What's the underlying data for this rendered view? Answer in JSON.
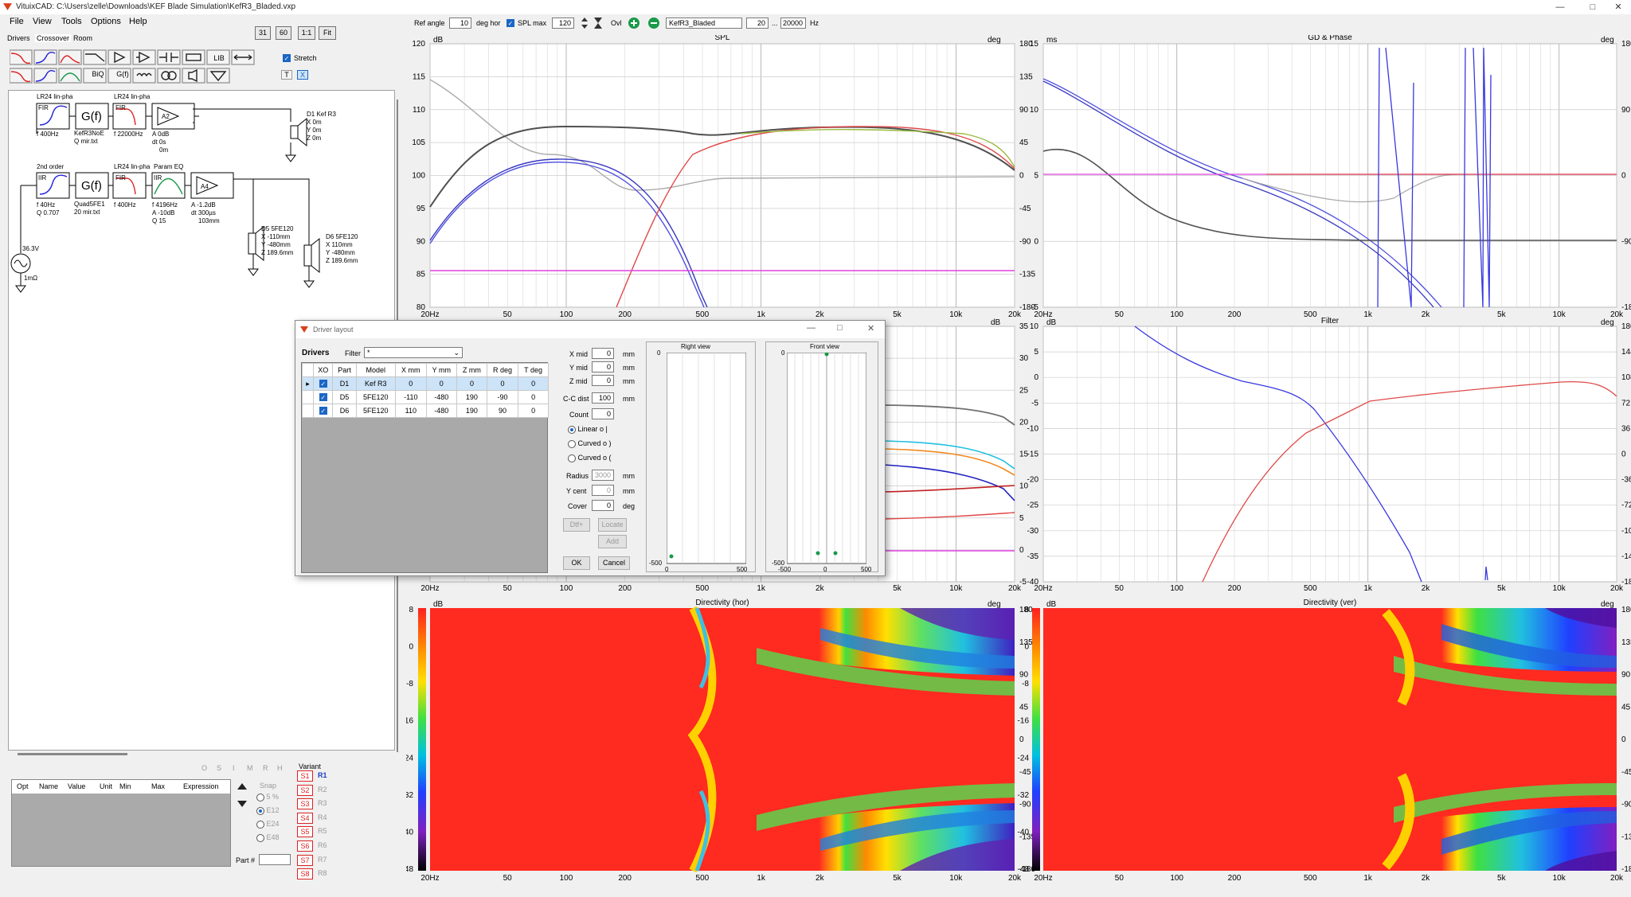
{
  "window": {
    "title": "VituixCAD: C:\\Users\\zelle\\Downloads\\KEF Blade Simulation\\KefR3_Bladed.vxp"
  },
  "menu": [
    "File",
    "View",
    "Tools",
    "Options",
    "Help"
  ],
  "tabs": [
    "Drivers",
    "Crossover",
    "Room"
  ],
  "toolbar_top": {
    "btn31": "31",
    "btn60": "60",
    "btn11": "1:1",
    "btnfit": "Fit",
    "ref_angle_label": "Ref angle",
    "ref_angle_value": "10",
    "deg_hor": "deg hor",
    "spl_max_label": "SPL max",
    "spl_max_value": "120",
    "ovl_label": "Ovl",
    "project_name": "KefR3_Bladed",
    "freq_min": "20",
    "dots": "...",
    "freq_max": "20000",
    "hz": "Hz"
  },
  "crossover_toolbar": {
    "lib": "LIB",
    "stretch": "Stretch",
    "biq": "BiQ",
    "gf": "G(f)",
    "t": "T",
    "x": "X"
  },
  "schematic": {
    "block1_label": "LR24 lin-pha",
    "block1_sub": "FIR",
    "block1_f": "f   400Hz",
    "gf1_label": "G(f)",
    "gf1_file": "KefR3NoE",
    "gf1_file2": "Q mir.txt",
    "block2_label": "LR24 lin-pha",
    "block2_sub": "FIR",
    "block2_f": "f   22000Hz",
    "amp1_name": "A2",
    "amp1_a": "A  0dB",
    "amp1_dt": "dt 0s",
    "amp1_m": "0m",
    "d1": "D1 Kef R3",
    "d1_x": "X  0m",
    "d1_y": "Y  0m",
    "d1_z": "Z  0m",
    "block3_label": "2nd order",
    "block3_sub": "IIR",
    "block3_f": "f   40Hz",
    "block3_q": "Q  0.707",
    "gf2_label": "G(f)",
    "gf2_file": "Quad5FE1",
    "gf2_file2": "20 mir.txt",
    "block4_label": "LR24 lin-pha",
    "block4_sub": "FIR",
    "block4_f": "f   400Hz",
    "block5_label": "Param EQ",
    "block5_sub": "IIR",
    "block5_f": "f   4196Hz",
    "block5_a": "A  -10dB",
    "block5_q": "Q  15",
    "amp2_name": "A4",
    "amp2_a": "A  -1.2dB",
    "amp2_dt": "dt 300µs",
    "amp2_m": "103mm",
    "d5": "D5 5FE120",
    "d5_x": "X  -110mm",
    "d5_y": "Y  -480mm",
    "d5_z": "Z  189.6mm",
    "d6": "D6 5FE120",
    "d6_x": "X  110mm",
    "d6_y": "Y  -480mm",
    "d6_z": "Z  189.6mm",
    "src_v": "36.3V",
    "src_r": "1mΩ"
  },
  "opt_table": {
    "headers": [
      "Opt",
      "Name",
      "Value",
      "Unit",
      "Min",
      "Max",
      "Expression"
    ],
    "letters": [
      "O",
      "S",
      "I",
      "M",
      "R",
      "H"
    ],
    "snap_label": "Snap",
    "snap": [
      "5 %",
      "E12",
      "E24",
      "E48"
    ],
    "part_label": "Part #",
    "variant_label": "Variant",
    "variants_s": [
      "S1",
      "S2",
      "S3",
      "S4",
      "S5",
      "S6",
      "S7",
      "S8"
    ],
    "variants_r": [
      "R1",
      "R2",
      "R3",
      "R4",
      "R5",
      "R6",
      "R7",
      "R8"
    ]
  },
  "charts": {
    "spl": {
      "title": "SPL",
      "ylabel_l": "dB",
      "ylabel_r": "deg",
      "yticks": [
        "120",
        "115",
        "110",
        "105",
        "100",
        "95",
        "90",
        "85",
        "80"
      ],
      "yticks_r": [
        "180",
        "135",
        "90",
        "45",
        "0",
        "-45",
        "-90",
        "-135",
        "-180"
      ]
    },
    "gd": {
      "title": "GD & Phase",
      "ylabel_l": "ms",
      "ylabel_r": "deg",
      "yticks": [
        "15",
        "10",
        "5",
        "0",
        "-5"
      ],
      "yticks_r": [
        "180",
        "90",
        "0",
        "-90",
        "-180"
      ]
    },
    "pwr": {
      "ylabel_l": "dB",
      "yticks_r": [
        "35",
        "30",
        "25",
        "20",
        "15",
        "10",
        "5",
        "0",
        "-5"
      ]
    },
    "filter": {
      "title": "Filter",
      "ylabel_l": "dB",
      "ylabel_r": "deg",
      "yticks": [
        "10",
        "5",
        "0",
        "-5",
        "-10",
        "-15",
        "-20",
        "-25",
        "-30",
        "-35",
        "-40"
      ],
      "yticks_r": [
        "180",
        "144",
        "108",
        "72",
        "36",
        "0",
        "-36",
        "-72",
        "-108",
        "-144",
        "-180"
      ]
    },
    "dir_hor": {
      "title": "Directivity (hor)",
      "ylabel_l": "dB",
      "ylabel_r": "deg"
    },
    "dir_ver": {
      "title": "Directivity (ver)",
      "ylabel_l": "dB",
      "ylabel_r": "deg"
    },
    "dir_yticks": [
      "180",
      "135",
      "90",
      "45",
      "0",
      "-45",
      "-90",
      "-135",
      "-180"
    ],
    "dir_scale": [
      "8",
      "0",
      "-8",
      "-16",
      "-24",
      "-32",
      "-40",
      "-48"
    ],
    "xticks": [
      "20Hz",
      "50",
      "100",
      "200",
      "500",
      "1k",
      "2k",
      "5k",
      "10k",
      "20k"
    ]
  },
  "dialog": {
    "title": "Driver layout",
    "drivers_label": "Drivers",
    "filter_label": "Filter",
    "filter_value": "*",
    "headers": [
      "XO",
      "Part",
      "Model",
      "X mm",
      "Y mm",
      "Z mm",
      "R deg",
      "T deg"
    ],
    "rows": [
      [
        "D1",
        "Kef R3",
        "0",
        "0",
        "0",
        "0",
        "0"
      ],
      [
        "D5",
        "5FE120",
        "-110",
        "-480",
        "190",
        "-90",
        "0"
      ],
      [
        "D6",
        "5FE120",
        "110",
        "-480",
        "190",
        "90",
        "0"
      ]
    ],
    "x_mid_label": "X mid",
    "x_mid": "0",
    "y_mid_label": "Y mid",
    "y_mid": "0",
    "z_mid_label": "Z mid",
    "z_mid": "0",
    "cc_label": "C-C dist",
    "cc": "100",
    "count_label": "Count",
    "count": "0",
    "mm": "mm",
    "deg": "deg",
    "linear": "Linear  o |",
    "curved1": "Curved  o )",
    "curved2": "Curved  o (",
    "radius_label": "Radius",
    "radius": "3000",
    "ycent_label": "Y cent",
    "ycent": "0",
    "cover_label": "Cover",
    "cover": "0",
    "dtf_btn": "Dtf+",
    "locate_btn": "Locate",
    "add_btn": "Add",
    "ok": "OK",
    "cancel": "Cancel",
    "right_view": "Right view",
    "front_view": "Front view",
    "rv_top": "0",
    "rv_bottom": "-500",
    "rv_x0": "0",
    "rv_x1": "500",
    "fv_top": "0",
    "fv_bottom": "-500",
    "fv_x0": "-500",
    "fv_x1": "0",
    "fv_x2": "500"
  },
  "colors": {
    "accent": "#1a66c5",
    "woofer": "#3838e0",
    "tweeter": "#e04848",
    "sum": "#505050"
  }
}
